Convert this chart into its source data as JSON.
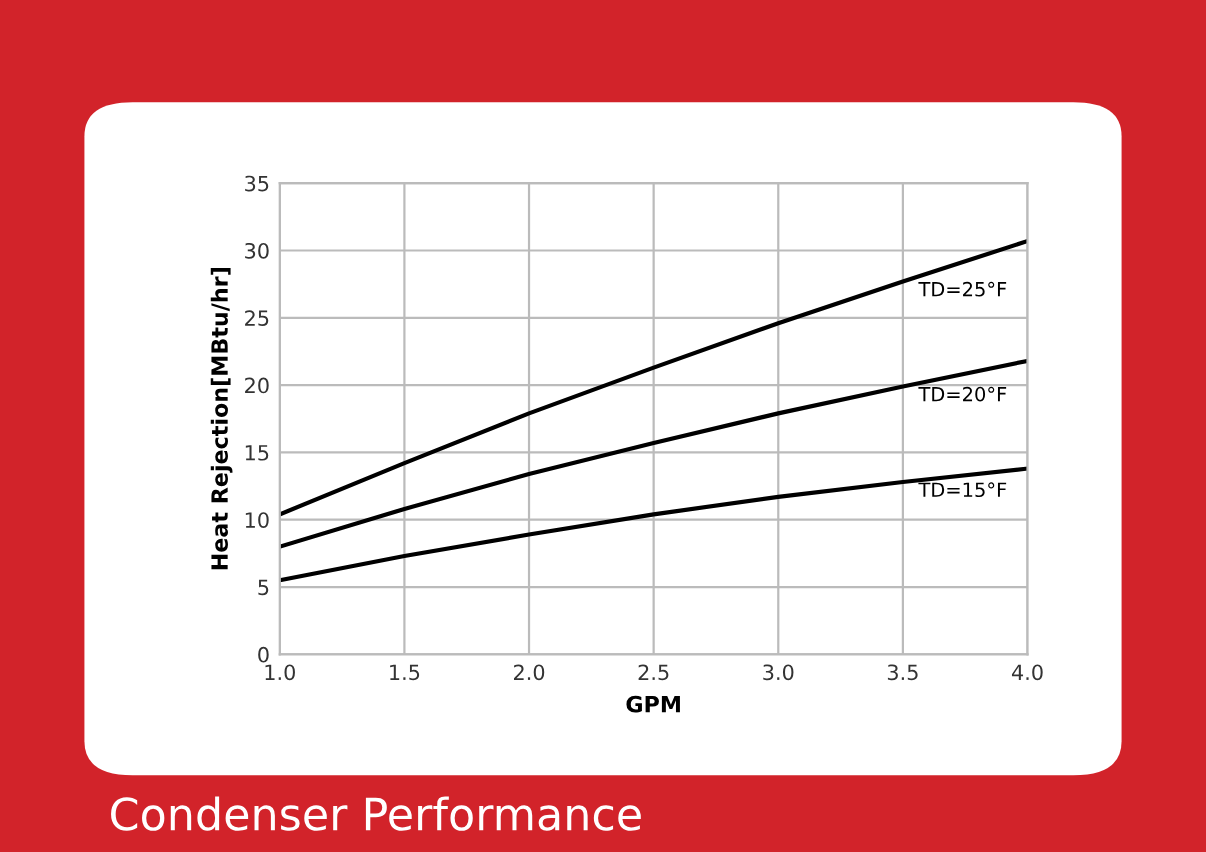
{
  "chart_data": {
    "type": "line",
    "title": "Condenser Performance",
    "xlabel": "GPM",
    "ylabel": "Heat Rejection[MBtu/hr]",
    "x": [
      1.0,
      1.5,
      2.0,
      2.5,
      3.0,
      3.5,
      4.0
    ],
    "series": [
      {
        "name": "TD=25°F",
        "color": "#000000",
        "values": [
          10.4,
          14.2,
          17.9,
          21.3,
          24.6,
          27.7,
          30.7
        ]
      },
      {
        "name": "TD=20°F",
        "color": "#000000",
        "values": [
          8.0,
          10.8,
          13.4,
          15.7,
          17.9,
          19.9,
          21.8
        ]
      },
      {
        "name": "TD=15°F",
        "color": "#000000",
        "values": [
          5.5,
          7.3,
          8.9,
          10.4,
          11.7,
          12.8,
          13.8
        ]
      }
    ],
    "xlim": [
      1.0,
      4.0
    ],
    "ylim": [
      0,
      35
    ],
    "xticks": [
      {
        "value": 1.0,
        "label": "1.0"
      },
      {
        "value": 1.5,
        "label": "1.5"
      },
      {
        "value": 2.0,
        "label": "2.0"
      },
      {
        "value": 2.5,
        "label": "2.5"
      },
      {
        "value": 3.0,
        "label": "3.0"
      },
      {
        "value": 3.5,
        "label": "3.5"
      },
      {
        "value": 4.0,
        "label": "4.0"
      }
    ],
    "yticks": [
      0,
      5,
      10,
      15,
      20,
      25,
      30,
      35
    ],
    "grid": true,
    "legend": false,
    "marker": "none",
    "line_style": "solid"
  }
}
